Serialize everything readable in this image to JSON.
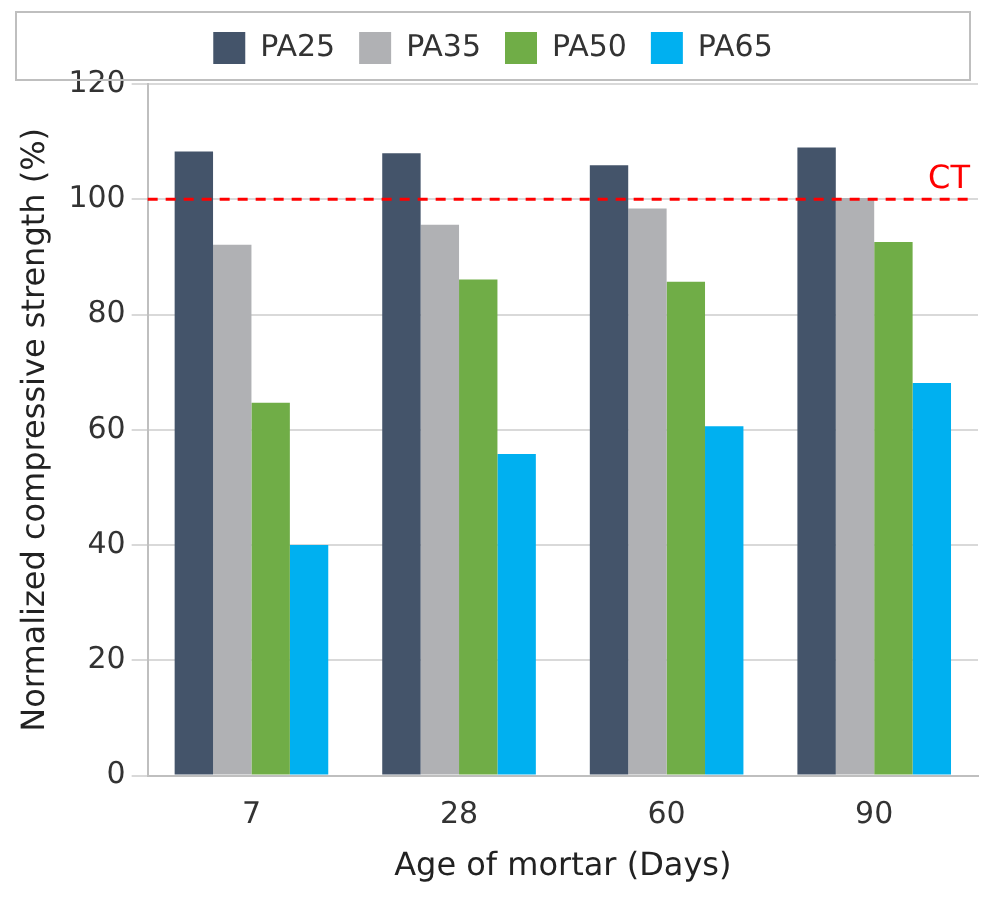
{
  "chart_data": {
    "type": "bar",
    "xlabel": "Age of mortar (Days)",
    "ylabel": "Normalized compressive strength (%)",
    "categories": [
      "7",
      "28",
      "60",
      "90"
    ],
    "series": [
      {
        "name": "PA25",
        "color": "#44546a",
        "values": [
          108.3,
          108.0,
          105.9,
          109.0
        ]
      },
      {
        "name": "PA35",
        "color": "#b0b1b4",
        "values": [
          92.1,
          95.6,
          98.4,
          100.2
        ]
      },
      {
        "name": "PA50",
        "color": "#70ad47",
        "values": [
          64.7,
          86.1,
          85.7,
          92.6
        ]
      },
      {
        "name": "PA65",
        "color": "#00b0f0",
        "values": [
          40.0,
          55.8,
          60.6,
          68.1
        ]
      }
    ],
    "ylim": [
      0,
      120
    ],
    "yticks": [
      0,
      20,
      40,
      60,
      80,
      100,
      120
    ],
    "grid": "y",
    "legend": "top",
    "ref_lines": [
      {
        "axis": "y",
        "value": 100,
        "label": "CT",
        "color": "#ff0000",
        "line_style": "dashed"
      }
    ]
  }
}
